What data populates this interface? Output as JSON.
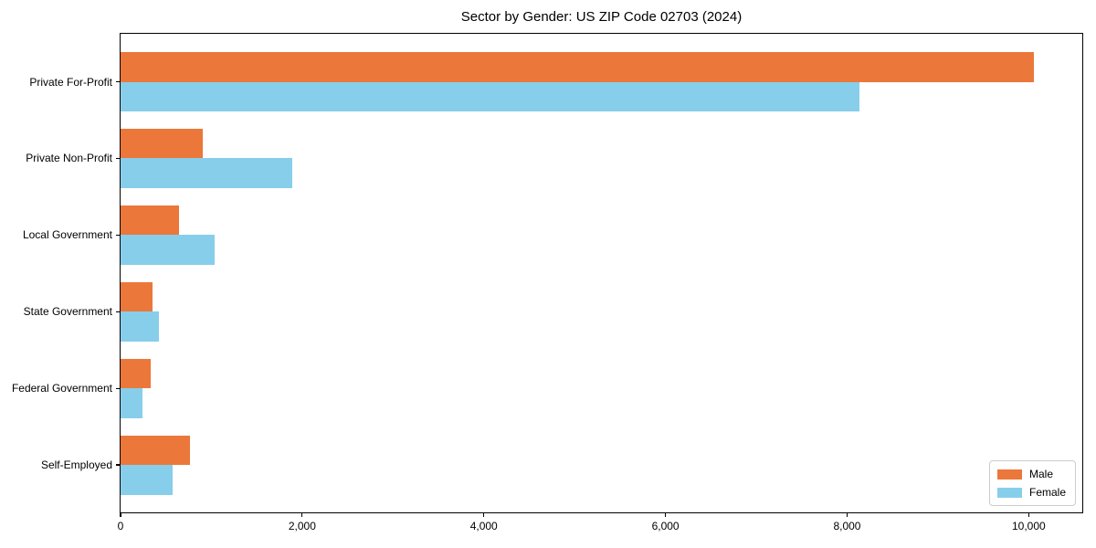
{
  "chart_data": {
    "type": "bar",
    "orientation": "horizontal",
    "title": "Sector by Gender: US ZIP Code 02703 (2024)",
    "categories": [
      "Private For-Profit",
      "Private Non-Profit",
      "Local Government",
      "State Government",
      "Federal Government",
      "Self-Employed"
    ],
    "series": [
      {
        "name": "Male",
        "color": "#eb773b",
        "values": [
          10060,
          910,
          640,
          350,
          330,
          760
        ]
      },
      {
        "name": "Female",
        "color": "#87ceeb",
        "values": [
          8140,
          1890,
          1040,
          420,
          240,
          570
        ]
      }
    ],
    "xlim": [
      0,
      10580
    ],
    "xticks": [
      0,
      2000,
      4000,
      6000,
      8000,
      10000
    ],
    "xtick_labels": [
      "0",
      "2,000",
      "4,000",
      "6,000",
      "8,000",
      "10,000"
    ],
    "xlabel": "",
    "ylabel": "",
    "grid": false,
    "legend_position": "lower right",
    "axis_color": "#000000",
    "background_color": "#ffffff"
  }
}
